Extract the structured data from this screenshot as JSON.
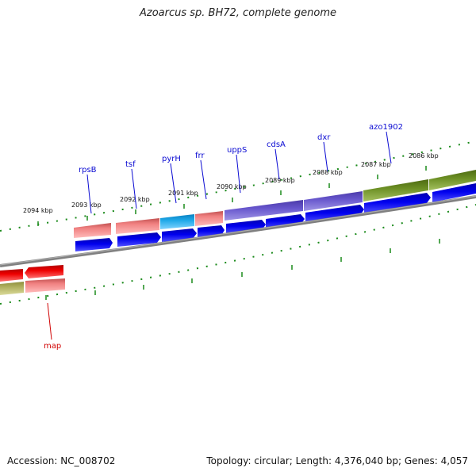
{
  "title": "Azoarcus sp. BH72, complete genome",
  "footer": {
    "accession": "Accession: NC_008702",
    "genome_info": "Topology: circular; Length: 4,376,040 bp; Genes: 4,057"
  },
  "kbp_labels": [
    "2094 kbp",
    "2093 kbp",
    "2092 kbp",
    "2091 kbp",
    "2090 kbp",
    "2089 kbp",
    "2088 kbp",
    "2087 kbp",
    "2086 kbp"
  ],
  "gene_labels": [
    "rpsB",
    "tsf",
    "pyrH",
    "frr",
    "uppS",
    "cdsA",
    "dxr",
    "azo1902",
    "map"
  ],
  "colors": {
    "backbone": "#808080",
    "tick": "#1a8a1a",
    "cds_arrow": "#0000ee",
    "salmon": "#f08080",
    "cyan": "#1ea8e8",
    "purple": "#6655cc",
    "olive": "#6b8e23",
    "red": "#ee0000",
    "khaki": "#b0b060"
  }
}
